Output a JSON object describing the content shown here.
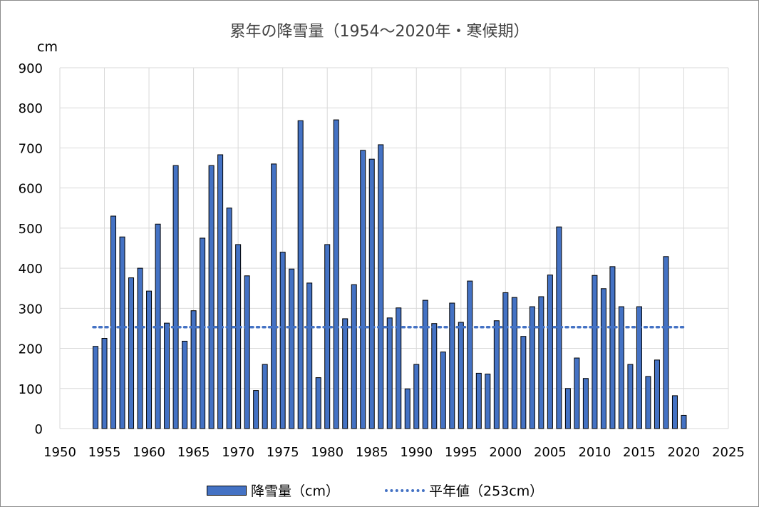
{
  "chart_data": {
    "type": "bar",
    "title": "累年の降雪量（1954～2020年・寒候期）",
    "ylabel": "cm",
    "xlabel": "",
    "xlim": [
      1950,
      2025
    ],
    "ylim": [
      0,
      900
    ],
    "x_ticks": [
      1950,
      1955,
      1960,
      1965,
      1970,
      1975,
      1980,
      1985,
      1990,
      1995,
      2000,
      2005,
      2010,
      2015,
      2020,
      2025
    ],
    "y_ticks": [
      0,
      100,
      200,
      300,
      400,
      500,
      600,
      700,
      800,
      900
    ],
    "grid": true,
    "legend_position": "bottom",
    "series": [
      {
        "name": "降雪量（cm）",
        "type": "bar",
        "color": "#4472c4",
        "x": [
          1954,
          1955,
          1956,
          1957,
          1958,
          1959,
          1960,
          1961,
          1962,
          1963,
          1964,
          1965,
          1966,
          1967,
          1968,
          1969,
          1970,
          1971,
          1972,
          1973,
          1974,
          1975,
          1976,
          1977,
          1978,
          1979,
          1980,
          1981,
          1982,
          1983,
          1984,
          1985,
          1986,
          1987,
          1988,
          1989,
          1990,
          1991,
          1992,
          1993,
          1994,
          1995,
          1996,
          1997,
          1998,
          1999,
          2000,
          2001,
          2002,
          2003,
          2004,
          2005,
          2006,
          2007,
          2008,
          2009,
          2010,
          2011,
          2012,
          2013,
          2014,
          2015,
          2016,
          2017,
          2018,
          2019,
          2020
        ],
        "values": [
          205,
          225,
          530,
          478,
          376,
          400,
          343,
          510,
          263,
          656,
          218,
          294,
          475,
          656,
          683,
          550,
          459,
          381,
          95,
          160,
          660,
          440,
          398,
          768,
          363,
          127,
          459,
          770,
          274,
          359,
          694,
          672,
          708,
          276,
          301,
          99,
          160,
          320,
          262,
          191,
          313,
          265,
          368,
          138,
          136,
          269,
          339,
          327,
          230,
          304,
          329,
          383,
          503,
          100,
          176,
          125,
          382,
          349,
          404,
          304,
          160,
          304,
          130,
          171,
          429,
          82,
          33
        ]
      },
      {
        "name": "平年値（253cm）",
        "type": "line",
        "style": "dotted",
        "color": "#4472c4",
        "x": [
          1954,
          2020
        ],
        "values": [
          253,
          253
        ]
      }
    ]
  }
}
